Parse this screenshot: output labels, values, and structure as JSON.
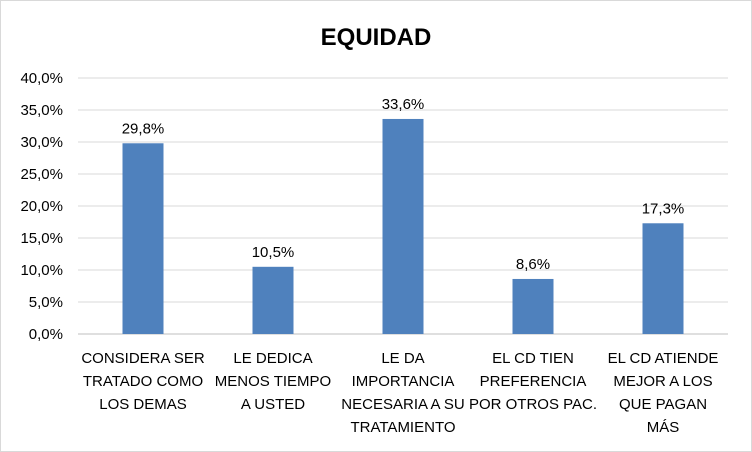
{
  "chart_data": {
    "type": "bar",
    "title": "EQUIDAD",
    "xlabel": "",
    "ylabel": "",
    "ylim": [
      0,
      40
    ],
    "yticks": [
      "0,0%",
      "5,0%",
      "10,0%",
      "15,0%",
      "20,0%",
      "25,0%",
      "30,0%",
      "35,0%",
      "40,0%"
    ],
    "grid": true,
    "legend": "none",
    "bar_color": "#4f81bd",
    "categories": [
      [
        "CONSIDERA SER",
        "TRATADO COMO",
        "LOS DEMAS"
      ],
      [
        "LE DEDICA",
        "MENOS TIEMPO",
        "A USTED"
      ],
      [
        "LE DA",
        "IMPORTANCIA",
        "NECESARIA A SU",
        "TRATAMIENTO"
      ],
      [
        "EL CD TIEN",
        "PREFERENCIA",
        "POR OTROS PAC."
      ],
      [
        "EL CD ATIENDE",
        "MEJOR A LOS",
        "QUE PAGAN",
        "MÁS"
      ]
    ],
    "values": [
      29.8,
      10.5,
      33.6,
      8.6,
      17.3
    ],
    "data_labels": [
      "29,8%",
      "10,5%",
      "33,6%",
      "8,6%",
      "17,3%"
    ]
  }
}
